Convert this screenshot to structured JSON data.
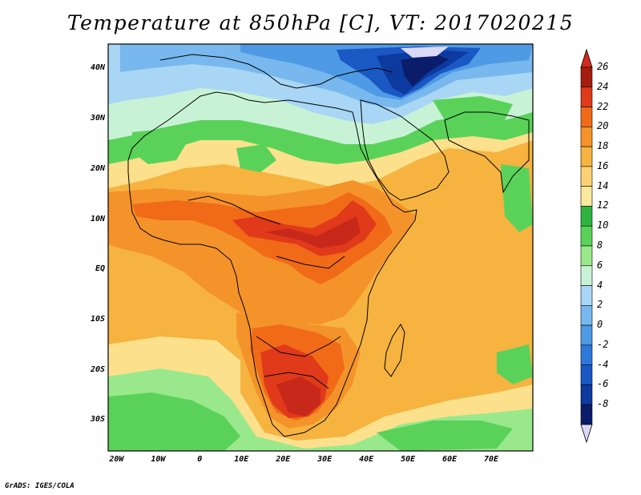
{
  "title": "Temperature at 850hPa [C], VT: 2017020215",
  "credit": "GrADS: IGES/COLA",
  "map": {
    "lat_range": [
      -36,
      45
    ],
    "lon_range": [
      -22,
      80
    ],
    "lat_ticks": [
      {
        "value": 40,
        "label": "40N"
      },
      {
        "value": 30,
        "label": "30N"
      },
      {
        "value": 20,
        "label": "20N"
      },
      {
        "value": 10,
        "label": "10N"
      },
      {
        "value": 0,
        "label": "EQ"
      },
      {
        "value": -10,
        "label": "10S"
      },
      {
        "value": -20,
        "label": "20S"
      },
      {
        "value": -30,
        "label": "30S"
      }
    ],
    "lon_ticks": [
      {
        "value": -20,
        "label": "20W"
      },
      {
        "value": -10,
        "label": "10W"
      },
      {
        "value": 0,
        "label": "0"
      },
      {
        "value": 10,
        "label": "10E"
      },
      {
        "value": 20,
        "label": "20E"
      },
      {
        "value": 30,
        "label": "30E"
      },
      {
        "value": 40,
        "label": "40E"
      },
      {
        "value": 50,
        "label": "50E"
      },
      {
        "value": 60,
        "label": "60E"
      },
      {
        "value": 70,
        "label": "70E"
      }
    ]
  },
  "colorbar": {
    "labels": [
      "26",
      "24",
      "22",
      "20",
      "18",
      "16",
      "14",
      "12",
      "10",
      "8",
      "6",
      "4",
      "2",
      "0",
      "-2",
      "-4",
      "-6",
      "-8"
    ],
    "colors": [
      "#a51c10",
      "#e03a1a",
      "#f06a18",
      "#f4932a",
      "#f6b340",
      "#fcd274",
      "#fae89c",
      "#30b440",
      "#5ad25a",
      "#9ae88c",
      "#c8f2d6",
      "#a8d6f4",
      "#78b8ee",
      "#4e9ae4",
      "#2e78da",
      "#1a58c4",
      "#0c3a9e",
      "#0a1c6a"
    ],
    "over_color": "#d42a18",
    "under_color": "#dcd8f8"
  }
}
